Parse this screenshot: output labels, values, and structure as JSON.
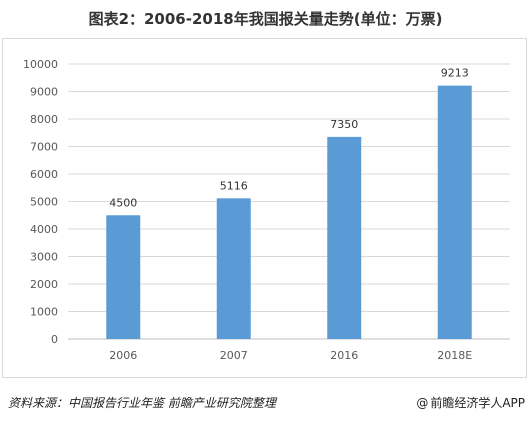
{
  "chart_data": {
    "type": "bar",
    "title": "图表2：2006-2018年我国报关量走势(单位：万票)",
    "categories": [
      "2006",
      "2007",
      "2016",
      "2018E"
    ],
    "values": [
      4500,
      5116,
      7350,
      9213
    ],
    "ylim": [
      0,
      10000
    ],
    "ytick_step": 1000,
    "yticks": [
      "0",
      "1000",
      "2000",
      "3000",
      "4000",
      "5000",
      "6000",
      "7000",
      "8000",
      "9000",
      "10000"
    ],
    "data_labels": [
      "4500",
      "5116",
      "7350",
      "9213"
    ],
    "grid": true,
    "legend": "none",
    "bar_color": "#5b9bd5"
  },
  "footer": {
    "source": "资料来源：中国报告行业年鉴 前瞻产业研究院整理",
    "brand_symbol": "@",
    "brand": "前瞻经济学人APP"
  },
  "colors": {
    "bar": "#5b9bd5",
    "grid": "#d9d9d9",
    "text": "#595959"
  }
}
